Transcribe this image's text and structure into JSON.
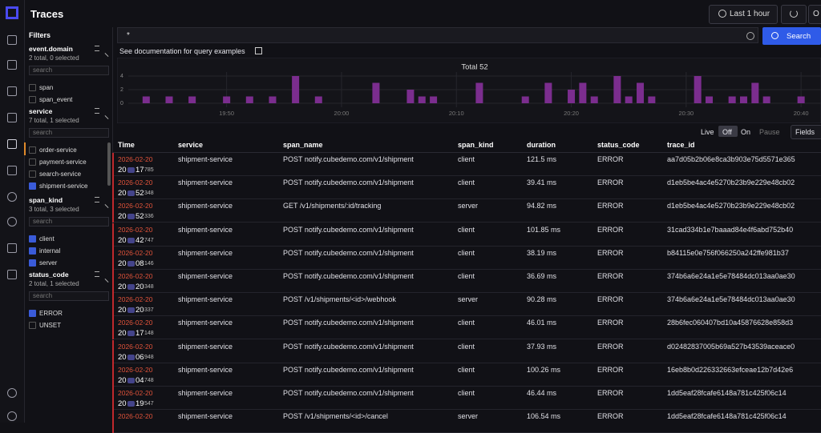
{
  "header": {
    "title": "Traces",
    "time_range": "Last 1 hour",
    "cut_button": "O"
  },
  "sidebar": {
    "filters_title": "Filters",
    "search_placeholder": "search",
    "filters": [
      {
        "name": "event.domain",
        "summary": "2 total, 0 selected",
        "options": [
          {
            "label": "span",
            "checked": false
          },
          {
            "label": "span_event",
            "checked": false
          }
        ]
      },
      {
        "name": "service",
        "summary": "7 total, 1 selected",
        "options": [
          {
            "label": "order-service",
            "checked": false
          },
          {
            "label": "payment-service",
            "checked": false
          },
          {
            "label": "search-service",
            "checked": false
          },
          {
            "label": "shipment-service",
            "checked": true
          }
        ]
      },
      {
        "name": "span_kind",
        "summary": "3 total, 3 selected",
        "options": [
          {
            "label": "client",
            "checked": true
          },
          {
            "label": "internal",
            "checked": true
          },
          {
            "label": "server",
            "checked": true
          }
        ]
      },
      {
        "name": "status_code",
        "summary": "2 total, 1 selected",
        "options": [
          {
            "label": "ERROR",
            "checked": true
          },
          {
            "label": "UNSET",
            "checked": false
          }
        ]
      }
    ]
  },
  "query": {
    "text": "*",
    "search_button": "Search",
    "doc_link": "See documentation for query examples"
  },
  "histogram": {
    "title": "Total 52",
    "color": "#7b2d8e",
    "yticks": [
      0,
      2,
      4
    ],
    "xticks": [
      {
        "value": 8,
        "label": "19:50"
      },
      {
        "value": 18,
        "label": "20:00"
      },
      {
        "value": 28,
        "label": "20:10"
      },
      {
        "value": 38,
        "label": "20:20"
      },
      {
        "value": 48,
        "label": "20:30"
      },
      {
        "value": 58,
        "label": "20:40"
      }
    ],
    "values": [
      0,
      1,
      0,
      1,
      0,
      1,
      0,
      0,
      1,
      0,
      1,
      0,
      1,
      0,
      4,
      0,
      1,
      0,
      0,
      0,
      0,
      3,
      0,
      0,
      2,
      1,
      1,
      0,
      0,
      0,
      3,
      0,
      0,
      0,
      1,
      0,
      3,
      0,
      2,
      3,
      1,
      0,
      4,
      1,
      3,
      1,
      0,
      0,
      0,
      4,
      1,
      0,
      1,
      1,
      3,
      1,
      0,
      0,
      1,
      0
    ]
  },
  "controls": {
    "live": "Live",
    "off": "Off",
    "on": "On",
    "pause": "Pause",
    "fields": "Fields"
  },
  "table": {
    "columns": [
      "Time",
      "service",
      "span_name",
      "span_kind",
      "duration",
      "status_code",
      "trace_id"
    ],
    "rows": [
      {
        "date": "2026-02-20",
        "hour": "20",
        "second": "17",
        "ms": "785",
        "cells": [
          "shipment-service",
          "POST notify.cubedemo.com/v1/shipment",
          "client",
          "121.5 ms",
          "ERROR",
          "aa7d05b2b06e8ca3b903e75d5571e365"
        ]
      },
      {
        "date": "2026-02-20",
        "hour": "20",
        "second": "52",
        "ms": "348",
        "cells": [
          "shipment-service",
          "POST notify.cubedemo.com/v1/shipment",
          "client",
          "39.41 ms",
          "ERROR",
          "d1eb5be4ac4e5270b23b9e229e48cb02"
        ]
      },
      {
        "date": "2026-02-20",
        "hour": "20",
        "second": "52",
        "ms": "336",
        "cells": [
          "shipment-service",
          "GET /v1/shipments/:id/tracking",
          "server",
          "94.82 ms",
          "ERROR",
          "d1eb5be4ac4e5270b23b9e229e48cb02"
        ]
      },
      {
        "date": "2026-02-20",
        "hour": "20",
        "second": "42",
        "ms": "747",
        "cells": [
          "shipment-service",
          "POST notify.cubedemo.com/v1/shipment",
          "client",
          "101.85 ms",
          "ERROR",
          "31cad334b1e7baaad84e4f6abd752b40"
        ]
      },
      {
        "date": "2026-02-20",
        "hour": "20",
        "second": "08",
        "ms": "146",
        "cells": [
          "shipment-service",
          "POST notify.cubedemo.com/v1/shipment",
          "client",
          "38.19 ms",
          "ERROR",
          "b84115e0e756f066250a242ffe981b37"
        ]
      },
      {
        "date": "2026-02-20",
        "hour": "20",
        "second": "20",
        "ms": "348",
        "cells": [
          "shipment-service",
          "POST notify.cubedemo.com/v1/shipment",
          "client",
          "36.69 ms",
          "ERROR",
          "374b6a6e24a1e5e78484dc013aa0ae30"
        ]
      },
      {
        "date": "2026-02-20",
        "hour": "20",
        "second": "20",
        "ms": "337",
        "cells": [
          "shipment-service",
          "POST /v1/shipments/<id>/webhook",
          "server",
          "90.28 ms",
          "ERROR",
          "374b6a6e24a1e5e78484dc013aa0ae30"
        ]
      },
      {
        "date": "2026-02-20",
        "hour": "20",
        "second": "17",
        "ms": "148",
        "cells": [
          "shipment-service",
          "POST notify.cubedemo.com/v1/shipment",
          "client",
          "46.01 ms",
          "ERROR",
          "28b6fec060407bd10a45876628e858d3"
        ]
      },
      {
        "date": "2026-02-20",
        "hour": "20",
        "second": "06",
        "ms": "948",
        "cells": [
          "shipment-service",
          "POST notify.cubedemo.com/v1/shipment",
          "client",
          "37.93 ms",
          "ERROR",
          "d02482837005b69a527b43539aceace0"
        ]
      },
      {
        "date": "2026-02-20",
        "hour": "20",
        "second": "04",
        "ms": "748",
        "cells": [
          "shipment-service",
          "POST notify.cubedemo.com/v1/shipment",
          "client",
          "100.26 ms",
          "ERROR",
          "16eb8b0d226332663efceae12b7d42e6"
        ]
      },
      {
        "date": "2026-02-20",
        "hour": "20",
        "second": "19",
        "ms": "547",
        "cells": [
          "shipment-service",
          "POST notify.cubedemo.com/v1/shipment",
          "client",
          "46.44 ms",
          "ERROR",
          "1dd5eaf28fcafe6148a781c425f06c14"
        ]
      },
      {
        "date": "2026-02-20",
        "cells": [
          "shipment-service",
          "POST /v1/shipments/<id>/cancel",
          "server",
          "106.54 ms",
          "ERROR",
          "1dd5eaf28fcafe6148a781c425f06c14"
        ]
      }
    ]
  }
}
